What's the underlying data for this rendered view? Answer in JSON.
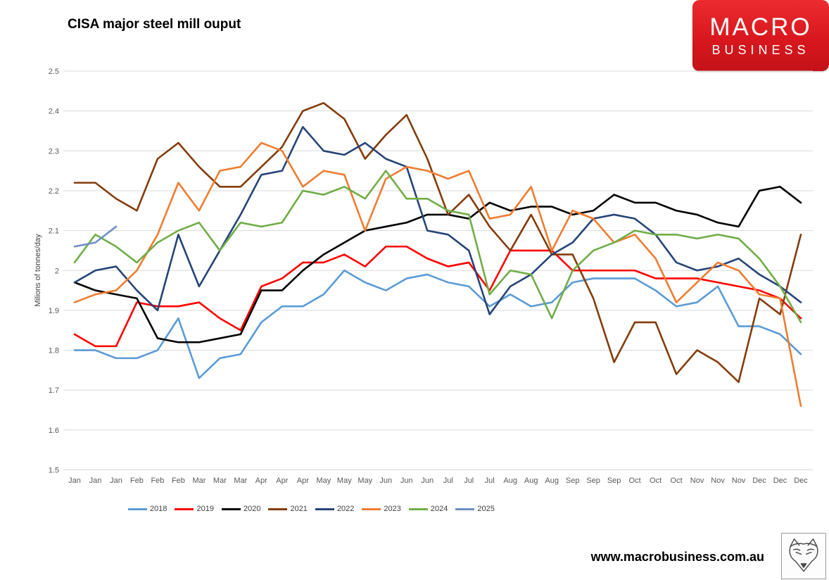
{
  "title": "CISA major steel mill ouput",
  "logo": {
    "line1": "MACRO",
    "line2": "BUSINESS"
  },
  "footer": {
    "url": "www.macrobusiness.com.au",
    "fox_icon": "fox-logo-icon"
  },
  "chart_data": {
    "type": "line",
    "title": "CISA major steel mill ouput",
    "xlabel": "",
    "ylabel": "Milions of tonnes/day",
    "ylim": [
      1.5,
      2.5
    ],
    "ytick_step": 0.1,
    "grid": true,
    "legend_position": "bottom",
    "x_labels": [
      "Jan",
      "Jan",
      "Jan",
      "Feb",
      "Feb",
      "Feb",
      "Mar",
      "Mar",
      "Mar",
      "Apr",
      "Apr",
      "Apr",
      "May",
      "May",
      "May",
      "Jun",
      "Jun",
      "Jun",
      "Jul",
      "Jul",
      "Jul",
      "Aug",
      "Aug",
      "Aug",
      "Sep",
      "Sep",
      "Sep",
      "Oct",
      "Oct",
      "Oct",
      "Nov",
      "Nov",
      "Nov",
      "Dec",
      "Dec",
      "Dec"
    ],
    "series": [
      {
        "name": "2018",
        "color": "#5B9BD5",
        "values": [
          1.8,
          1.8,
          1.78,
          1.78,
          1.8,
          1.88,
          1.73,
          1.78,
          1.79,
          1.87,
          1.91,
          1.91,
          1.94,
          2.0,
          1.97,
          1.95,
          1.98,
          1.99,
          1.97,
          1.96,
          1.91,
          1.94,
          1.91,
          1.92,
          1.97,
          1.98,
          1.98,
          1.98,
          1.95,
          1.91,
          1.92,
          1.96,
          1.86,
          1.86,
          1.84,
          1.79
        ]
      },
      {
        "name": "2019",
        "color": "#FF0000",
        "values": [
          1.84,
          1.81,
          1.81,
          1.92,
          1.91,
          1.91,
          1.92,
          1.88,
          1.85,
          1.96,
          1.98,
          2.02,
          2.02,
          2.04,
          2.01,
          2.06,
          2.06,
          2.03,
          2.01,
          2.02,
          1.95,
          2.05,
          2.05,
          2.05,
          2.0,
          2.0,
          2.0,
          2.0,
          1.98,
          1.98,
          1.98,
          1.97,
          1.96,
          1.95,
          1.93,
          1.88
        ]
      },
      {
        "name": "2020",
        "color": "#000000",
        "values": [
          1.97,
          1.95,
          1.94,
          1.93,
          1.83,
          1.82,
          1.82,
          1.83,
          1.84,
          1.95,
          1.95,
          2.0,
          2.04,
          2.07,
          2.1,
          2.11,
          2.12,
          2.14,
          2.14,
          2.13,
          2.17,
          2.15,
          2.16,
          2.16,
          2.14,
          2.15,
          2.19,
          2.17,
          2.17,
          2.15,
          2.14,
          2.12,
          2.11,
          2.2,
          2.21,
          2.17
        ]
      },
      {
        "name": "2021",
        "color": "#843C0B",
        "values": [
          2.22,
          2.22,
          2.18,
          2.15,
          2.28,
          2.32,
          2.26,
          2.21,
          2.21,
          2.26,
          2.31,
          2.4,
          2.42,
          2.38,
          2.28,
          2.34,
          2.39,
          2.28,
          2.14,
          2.19,
          2.11,
          2.05,
          2.14,
          2.04,
          2.04,
          1.93,
          1.77,
          1.87,
          1.87,
          1.74,
          1.8,
          1.77,
          1.72,
          1.93,
          1.89,
          2.09
        ]
      },
      {
        "name": "2022",
        "color": "#264478",
        "values": [
          1.97,
          2.0,
          2.01,
          1.95,
          1.9,
          2.09,
          1.96,
          2.05,
          2.14,
          2.24,
          2.25,
          2.36,
          2.3,
          2.29,
          2.32,
          2.28,
          2.26,
          2.1,
          2.09,
          2.05,
          1.89,
          1.96,
          1.99,
          2.04,
          2.07,
          2.13,
          2.14,
          2.13,
          2.09,
          2.02,
          2.0,
          2.01,
          2.03,
          1.99,
          1.96,
          1.92
        ]
      },
      {
        "name": "2023",
        "color": "#ED7D31",
        "values": [
          1.92,
          1.94,
          1.95,
          2.0,
          2.09,
          2.22,
          2.15,
          2.25,
          2.26,
          2.32,
          2.3,
          2.21,
          2.25,
          2.24,
          2.1,
          2.23,
          2.26,
          2.25,
          2.23,
          2.25,
          2.13,
          2.14,
          2.21,
          2.05,
          2.15,
          2.13,
          2.07,
          2.09,
          2.03,
          1.92,
          1.97,
          2.02,
          2.0,
          1.94,
          1.93,
          1.66
        ]
      },
      {
        "name": "2024",
        "color": "#70AD47",
        "values": [
          2.02,
          2.09,
          2.06,
          2.02,
          2.07,
          2.1,
          2.12,
          2.05,
          2.12,
          2.11,
          2.12,
          2.2,
          2.19,
          2.21,
          2.18,
          2.25,
          2.18,
          2.18,
          2.15,
          2.14,
          1.94,
          2.0,
          1.99,
          1.88,
          2.0,
          2.05,
          2.07,
          2.1,
          2.09,
          2.09,
          2.08,
          2.09,
          2.08,
          2.03,
          1.96,
          1.87
        ]
      },
      {
        "name": "2025",
        "color": "#6E8FC7",
        "values": [
          2.06,
          2.07,
          2.11
        ]
      }
    ]
  }
}
